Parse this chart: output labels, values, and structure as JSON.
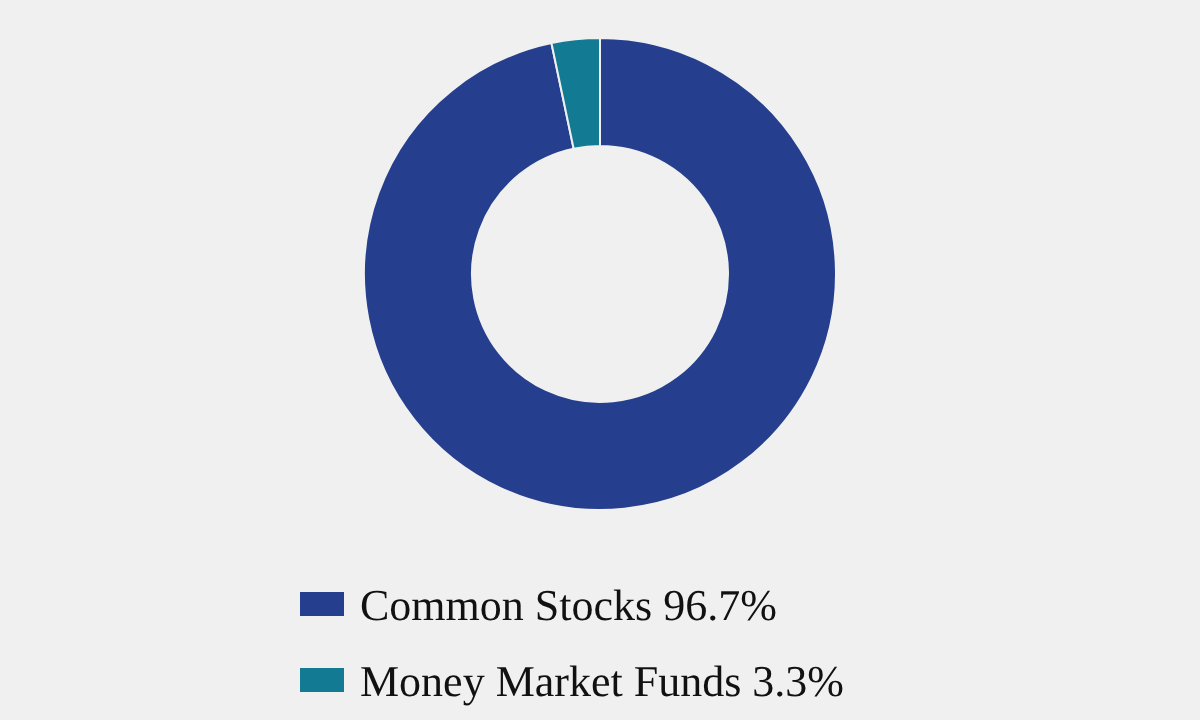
{
  "chart_data": {
    "type": "donut",
    "categories": [
      "Common Stocks",
      "Money Market Funds"
    ],
    "values": [
      96.7,
      3.3
    ],
    "value_labels": [
      "96.7%",
      "3.3%"
    ],
    "colors": [
      "#253f8e",
      "#127a93"
    ],
    "legend": "bottom"
  }
}
